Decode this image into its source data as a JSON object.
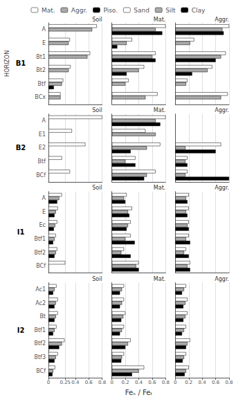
{
  "chart_data": [
    {
      "type": "bar",
      "orientation": "horizontal",
      "title": "Soil",
      "annotations": [
        "B1"
      ],
      "ylabel": "HORIZON",
      "categories": [
        "A",
        "E",
        "Bt1",
        "Bt2",
        "Btf",
        "BCx"
      ],
      "series": [
        {
          "name": "Mat.",
          "color": "#ffffff",
          "values": [
            0.72,
            0.32,
            0.62,
            0.33,
            0.22,
            0.18
          ]
        },
        {
          "name": "Aggr.",
          "color": "#aaaaaa",
          "values": [
            0.65,
            0.3,
            0.58,
            0.3,
            0.2,
            0.18
          ]
        },
        {
          "name": "Piso.",
          "color": "#000000",
          "values": [
            0.0,
            0.0,
            0.0,
            0.0,
            0.08,
            0.0
          ]
        }
      ],
      "xlim": [
        0,
        0.8
      ],
      "xticks": [
        0,
        0.25,
        0.4,
        0.6,
        0.8
      ],
      "grid": true,
      "legend": "top",
      "tick_labels": "y"
    },
    {
      "type": "bar",
      "orientation": "horizontal",
      "title": "Mat.",
      "categories": [
        "A",
        "E",
        "Bt1",
        "Bt2",
        "Btf",
        "BCx"
      ],
      "series": [
        {
          "name": "Sand",
          "color": "#ffffff",
          "values": [
            0.8,
            0.3,
            0.65,
            0.48,
            0.25,
            0.68
          ]
        },
        {
          "name": "Silt",
          "color": "#aaaaaa",
          "values": [
            0.65,
            0.22,
            0.6,
            0.4,
            0.2,
            0.5
          ]
        },
        {
          "name": "Clay",
          "color": "#000000",
          "values": [
            0.75,
            0.08,
            0.65,
            0.22,
            0.0,
            0.0
          ]
        }
      ],
      "xlim": [
        0,
        0.8
      ],
      "xticks": [
        0,
        0.2,
        0.4,
        0.6,
        0.8
      ],
      "grid": true,
      "legend": "top",
      "tick_labels": false
    },
    {
      "type": "bar",
      "orientation": "horizontal",
      "title": "Aggr.",
      "categories": [
        "A",
        "E",
        "Bt1",
        "Bt2",
        "Btf",
        "BCx"
      ],
      "series": [
        {
          "name": "Sand",
          "color": "#ffffff",
          "values": [
            0.8,
            0.28,
            0.75,
            0.55,
            0.18,
            0.78
          ]
        },
        {
          "name": "Silt",
          "color": "#aaaaaa",
          "values": [
            0.7,
            0.22,
            0.68,
            0.48,
            0.16,
            0.68
          ]
        },
        {
          "name": "Clay",
          "color": "#000000",
          "values": [
            0.72,
            0.0,
            0.6,
            0.25,
            0.0,
            0.0
          ]
        }
      ],
      "xlim": [
        0,
        0.8
      ],
      "xticks": [
        0,
        0.2,
        0.4,
        0.6,
        0.8
      ],
      "grid": true,
      "legend": "top",
      "tick_labels": false
    },
    {
      "type": "bar",
      "orientation": "horizontal",
      "title": "Soil",
      "annotations": [
        "B2"
      ],
      "categories": [
        "A",
        "E1",
        "E2",
        "Btf",
        "BCf"
      ],
      "series": [
        {
          "name": "Mat.",
          "color": "#ffffff",
          "values": [
            0.8,
            0.35,
            0.55,
            0.2,
            0.32
          ]
        },
        {
          "name": "Aggr.",
          "color": "#aaaaaa",
          "values": [
            0.0,
            0.0,
            0.0,
            0.0,
            0.0
          ]
        },
        {
          "name": "Piso.",
          "color": "#000000",
          "values": [
            0.0,
            0.0,
            0.0,
            0.0,
            0.0
          ]
        }
      ],
      "xlim": [
        0,
        0.8
      ],
      "xticks": [
        0,
        0.25,
        0.4,
        0.6,
        0.8
      ],
      "grid": true,
      "legend": "top",
      "tick_labels": "y"
    },
    {
      "type": "bar",
      "orientation": "horizontal",
      "title": "Mat.",
      "categories": [
        "A",
        "E1",
        "E2",
        "Btf",
        "BCf"
      ],
      "series": [
        {
          "name": "Sand",
          "color": "#ffffff",
          "values": [
            0.8,
            0.5,
            0.72,
            0.35,
            0.65
          ]
        },
        {
          "name": "Silt",
          "color": "#aaaaaa",
          "values": [
            0.65,
            0.65,
            0.52,
            0.2,
            0.52
          ]
        },
        {
          "name": "Clay",
          "color": "#000000",
          "values": [
            0.72,
            0.0,
            0.28,
            0.35,
            0.48
          ]
        }
      ],
      "xlim": [
        0,
        0.8
      ],
      "xticks": [
        0,
        0.2,
        0.4,
        0.6,
        0.8
      ],
      "grid": true,
      "legend": "top",
      "tick_labels": false
    },
    {
      "type": "bar",
      "orientation": "horizontal",
      "title": "Aggr.",
      "categories": [
        "A",
        "E1",
        "E2",
        "Btf",
        "BCf"
      ],
      "series": [
        {
          "name": "Sand",
          "color": "#ffffff",
          "values": [
            0.0,
            0.0,
            0.68,
            0.18,
            0.18
          ]
        },
        {
          "name": "Silt",
          "color": "#aaaaaa",
          "values": [
            0.0,
            0.0,
            0.15,
            0.15,
            0.15
          ]
        },
        {
          "name": "Clay",
          "color": "#000000",
          "values": [
            0.0,
            0.0,
            0.6,
            0.18,
            0.8
          ]
        }
      ],
      "xlim": [
        0,
        0.8
      ],
      "xticks": [
        0,
        0.2,
        0.4,
        0.6,
        0.8
      ],
      "grid": true,
      "legend": "top",
      "tick_labels": false
    },
    {
      "type": "bar",
      "orientation": "horizontal",
      "title": "Soil",
      "annotations": [
        "I1"
      ],
      "categories": [
        "A",
        "E",
        "Ec",
        "Btf1",
        "Btf2",
        "BCf"
      ],
      "series": [
        {
          "name": "Mat.",
          "color": "#ffffff",
          "values": [
            0.2,
            0.14,
            0.13,
            0.11,
            0.13,
            0.25
          ]
        },
        {
          "name": "Aggr.",
          "color": "#aaaaaa",
          "values": [
            0.16,
            0.11,
            0.1,
            0.09,
            0.11,
            0.0
          ]
        },
        {
          "name": "Piso.",
          "color": "#000000",
          "values": [
            0.13,
            0.09,
            0.08,
            0.07,
            0.09,
            0.0
          ]
        }
      ],
      "xlim": [
        0,
        0.8
      ],
      "xticks": [
        0,
        0.25,
        0.4,
        0.6,
        0.8
      ],
      "grid": true,
      "legend": "top",
      "tick_labels": "y"
    },
    {
      "type": "bar",
      "orientation": "horizontal",
      "title": "Mat.",
      "categories": [
        "A",
        "E",
        "Ec",
        "Btf1",
        "Btf2",
        "BCf"
      ],
      "series": [
        {
          "name": "Sand",
          "color": "#ffffff",
          "values": [
            0.22,
            0.3,
            0.28,
            0.28,
            0.18,
            0.4
          ]
        },
        {
          "name": "Silt",
          "color": "#aaaaaa",
          "values": [
            0.18,
            0.24,
            0.24,
            0.2,
            0.14,
            0.36
          ]
        },
        {
          "name": "Clay",
          "color": "#000000",
          "values": [
            0.2,
            0.26,
            0.22,
            0.34,
            0.28,
            0.4
          ]
        }
      ],
      "xlim": [
        0,
        0.8
      ],
      "xticks": [
        0,
        0.2,
        0.4,
        0.6,
        0.8
      ],
      "grid": true,
      "legend": "top",
      "tick_labels": false
    },
    {
      "type": "bar",
      "orientation": "horizontal",
      "title": "Aggr.",
      "categories": [
        "A",
        "E",
        "Ec",
        "Btf1",
        "Btf2",
        "BCf"
      ],
      "series": [
        {
          "name": "Sand",
          "color": "#ffffff",
          "values": [
            0.2,
            0.2,
            0.2,
            0.2,
            0.16,
            0.22
          ]
        },
        {
          "name": "Silt",
          "color": "#aaaaaa",
          "values": [
            0.16,
            0.16,
            0.18,
            0.16,
            0.13,
            0.18
          ]
        },
        {
          "name": "Clay",
          "color": "#000000",
          "values": [
            0.18,
            0.18,
            0.2,
            0.22,
            0.2,
            0.22
          ]
        }
      ],
      "xlim": [
        0,
        0.8
      ],
      "xticks": [
        0,
        0.2,
        0.4,
        0.6,
        0.8
      ],
      "grid": true,
      "legend": "top",
      "tick_labels": false
    },
    {
      "type": "bar",
      "orientation": "horizontal",
      "title": "Soil",
      "annotations": [
        "I2"
      ],
      "categories": [
        "Ac1",
        "Ac2",
        "Bt",
        "Btf1",
        "Btf2",
        "Btf3",
        "BCf"
      ],
      "series": [
        {
          "name": "Mat.",
          "color": "#ffffff",
          "values": [
            0.12,
            0.14,
            0.14,
            0.12,
            0.24,
            0.14,
            0.1
          ]
        },
        {
          "name": "Aggr.",
          "color": "#aaaaaa",
          "values": [
            0.09,
            0.11,
            0.11,
            0.09,
            0.2,
            0.11,
            0.07
          ]
        },
        {
          "name": "Piso.",
          "color": "#000000",
          "values": [
            0.07,
            0.09,
            0.09,
            0.07,
            0.16,
            0.09,
            0.06
          ]
        }
      ],
      "xlim": [
        0,
        0.8
      ],
      "xticks": [
        0,
        0.25,
        0.4,
        0.6,
        0.8
      ],
      "grid": true,
      "legend": "top"
    },
    {
      "type": "bar",
      "orientation": "horizontal",
      "title": "Mat.",
      "xlabel": "Feₒ / Feₜ",
      "categories": [
        "Ac1",
        "Ac2",
        "Bt",
        "Btf1",
        "Btf2",
        "Btf3",
        "BCf"
      ],
      "series": [
        {
          "name": "Sand",
          "color": "#ffffff",
          "values": [
            0.18,
            0.18,
            0.2,
            0.18,
            0.28,
            0.18,
            0.48
          ]
        },
        {
          "name": "Silt",
          "color": "#aaaaaa",
          "values": [
            0.15,
            0.15,
            0.17,
            0.15,
            0.24,
            0.15,
            0.4
          ]
        },
        {
          "name": "Clay",
          "color": "#000000",
          "values": [
            0.12,
            0.12,
            0.14,
            0.12,
            0.2,
            0.14,
            0.3
          ]
        }
      ],
      "xlim": [
        0,
        0.8
      ],
      "xticks": [
        0,
        0.2,
        0.4,
        0.6,
        0.8
      ],
      "grid": true,
      "legend": "top",
      "tick_labels": "x"
    },
    {
      "type": "bar",
      "orientation": "horizontal",
      "title": "Aggr.",
      "categories": [
        "Ac1",
        "Ac2",
        "Bt",
        "Btf1",
        "Btf2",
        "Btf3",
        "BCf"
      ],
      "series": [
        {
          "name": "Sand",
          "color": "#ffffff",
          "values": [
            0.16,
            0.18,
            0.18,
            0.16,
            0.22,
            0.16,
            0.2
          ]
        },
        {
          "name": "Silt",
          "color": "#aaaaaa",
          "values": [
            0.13,
            0.15,
            0.15,
            0.13,
            0.18,
            0.13,
            0.16
          ]
        },
        {
          "name": "Clay",
          "color": "#000000",
          "values": [
            0.1,
            0.12,
            0.12,
            0.1,
            0.16,
            0.11,
            0.14
          ]
        }
      ],
      "xlim": [
        0,
        0.8
      ],
      "xticks": [
        0,
        0.2,
        0.4,
        0.6,
        0.8
      ],
      "grid": true,
      "legend": "top",
      "tick_labels": "x"
    }
  ]
}
